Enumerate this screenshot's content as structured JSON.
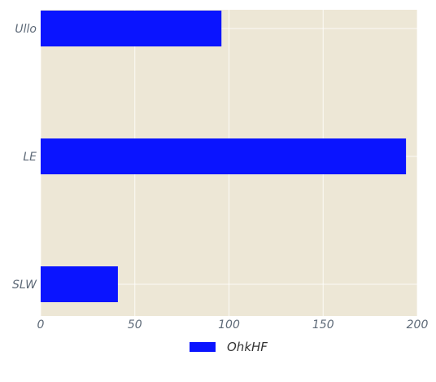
{
  "chart_data": {
    "type": "bar",
    "orientation": "horizontal",
    "categories": [
      "Ullo",
      "LE",
      "SLW"
    ],
    "series": [
      {
        "name": "OhkHF",
        "values": [
          96,
          194,
          41
        ],
        "color": "#0a14ff"
      }
    ],
    "xlim": [
      0,
      200
    ],
    "x_ticks": [
      0,
      50,
      100,
      150,
      200
    ],
    "grid": true,
    "legend_position": "bottom-center",
    "plot_background": "#ede7d6",
    "grid_color": "#ffffff",
    "tick_label_color": "#5e6a78"
  }
}
